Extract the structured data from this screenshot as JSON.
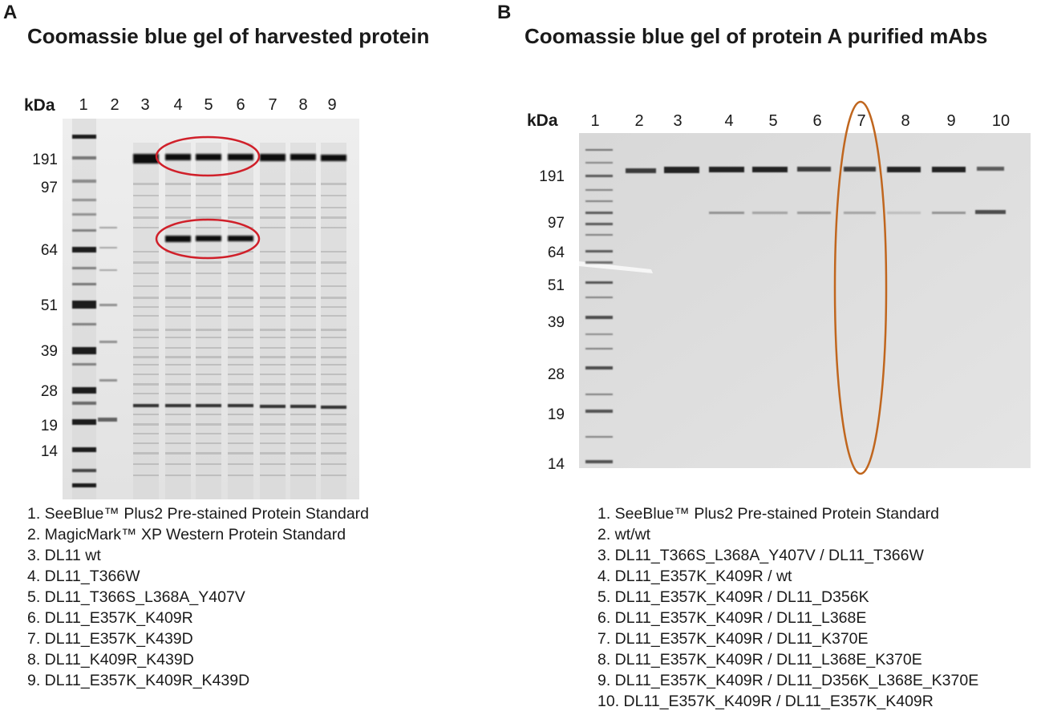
{
  "panelA": {
    "letter": "A",
    "title": "Coomassie blue gel of harvested protein",
    "kda_label": "kDa",
    "lanes": [
      "1",
      "2",
      "3",
      "4",
      "5",
      "6",
      "7",
      "8",
      "9"
    ],
    "mw_markers": [
      "191",
      "97",
      "64",
      "51",
      "39",
      "28",
      "19",
      "14"
    ],
    "legend": [
      "1. SeeBlue™ Plus2 Pre-stained Protein Standard",
      "2. MagicMark™ XP Western Protein Standard",
      "3. DL11 wt",
      "4. DL11_T366W",
      "5. DL11_T366S_L368A_Y407V",
      "6. DL11_E357K_K409R",
      "7. DL11_E357K_K439D",
      "8. DL11_K409R_K439D",
      "9. DL11_E357K_K409R_K439D"
    ],
    "highlight_color": "#d0202a"
  },
  "panelB": {
    "letter": "B",
    "title": "Coomassie blue gel of protein A purified mAbs",
    "kda_label": "kDa",
    "lanes": [
      "1",
      "2",
      "3",
      "4",
      "5",
      "6",
      "7",
      "8",
      "9",
      "10"
    ],
    "mw_markers": [
      "191",
      "97",
      "64",
      "51",
      "39",
      "28",
      "19",
      "14"
    ],
    "legend": [
      "1. SeeBlue™ Plus2 Pre-stained Protein Standard",
      "2. wt/wt",
      "3. DL11_T366S_L368A_Y407V / DL11_T366W",
      "4. DL11_E357K_K409R / wt",
      "5. DL11_E357K_K409R / DL11_D356K",
      "6. DL11_E357K_K409R / DL11_L368E",
      "7. DL11_E357K_K409R / DL11_K370E",
      "8. DL11_E357K_K409R / DL11_L368E_K370E",
      "9. DL11_E357K_K409R / DL11_D356K_L368E_K370E",
      "10. DL11_E357K_K409R / DL11_E357K_K409R"
    ],
    "highlight_color": "#c0661e"
  }
}
